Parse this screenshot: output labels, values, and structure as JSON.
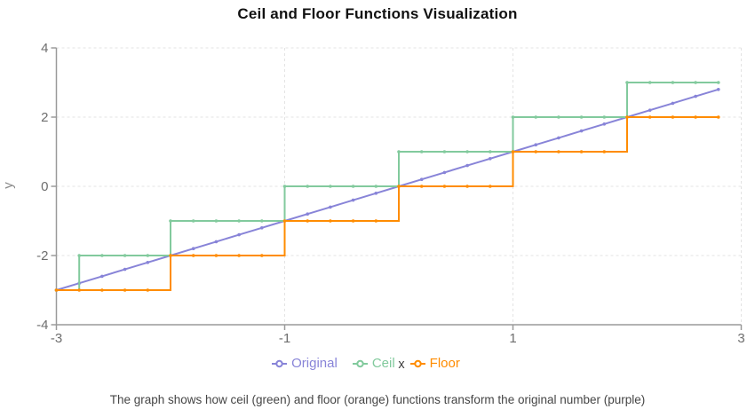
{
  "title": "Ceil and Floor Functions Visualization",
  "caption": "The graph shows how ceil (green) and floor (orange) functions transform the original number (purple)",
  "axes": {
    "x_label": "x",
    "y_label": "y",
    "x_ticks": [
      -3,
      -1,
      1,
      3
    ],
    "y_ticks": [
      4,
      2,
      0,
      -2,
      -4
    ],
    "x_range": [
      -3,
      3
    ],
    "y_range": [
      -4,
      4
    ]
  },
  "colors": {
    "original": "#8884d8",
    "ceil": "#82ca9d",
    "floor": "#ff8c00",
    "grid": "#e3e3e3",
    "axis": "#9a9a9a",
    "tick_text": "#6e6e6e"
  },
  "legend": [
    {
      "label": "Original",
      "series": "original"
    },
    {
      "label": "Ceil",
      "series": "ceil"
    },
    {
      "label": "Floor",
      "series": "floor"
    }
  ],
  "chart_data": {
    "type": "line",
    "title": "Ceil and Floor Functions Visualization",
    "xlabel": "x",
    "ylabel": "y",
    "xlim": [
      -3,
      3
    ],
    "ylim": [
      -4,
      4
    ],
    "grid": "dashed",
    "legend_position": "bottom",
    "x": [
      -3,
      -2.8,
      -2.6,
      -2.4,
      -2.2,
      -2,
      -1.8,
      -1.6,
      -1.4,
      -1.2,
      -1,
      -0.8,
      -0.6,
      -0.4,
      -0.2,
      0,
      0.2,
      0.4,
      0.6,
      0.8,
      1,
      1.2,
      1.4,
      1.6,
      1.8,
      2,
      2.2,
      2.4,
      2.6,
      2.8
    ],
    "series": [
      {
        "name": "Original",
        "key": "original",
        "interpolation": "linear",
        "values": [
          -3,
          -2.8,
          -2.6,
          -2.4,
          -2.2,
          -2,
          -1.8,
          -1.6,
          -1.4,
          -1.2,
          -1,
          -0.8,
          -0.6,
          -0.4,
          -0.2,
          0,
          0.2,
          0.4,
          0.6,
          0.8,
          1,
          1.2,
          1.4,
          1.6,
          1.8,
          2,
          2.2,
          2.4,
          2.6,
          2.8
        ]
      },
      {
        "name": "Ceil",
        "key": "ceil",
        "interpolation": "step-after",
        "values": [
          -3,
          -2,
          -2,
          -2,
          -2,
          -1,
          -1,
          -1,
          -1,
          -1,
          0,
          0,
          0,
          0,
          0,
          1,
          1,
          1,
          1,
          1,
          2,
          2,
          2,
          2,
          2,
          3,
          3,
          3,
          3,
          3
        ]
      },
      {
        "name": "Floor",
        "key": "floor",
        "interpolation": "step-after",
        "values": [
          -3,
          -3,
          -3,
          -3,
          -3,
          -2,
          -2,
          -2,
          -2,
          -2,
          -1,
          -1,
          -1,
          -1,
          -1,
          0,
          0,
          0,
          0,
          0,
          1,
          1,
          1,
          1,
          1,
          2,
          2,
          2,
          2,
          2
        ]
      }
    ]
  }
}
